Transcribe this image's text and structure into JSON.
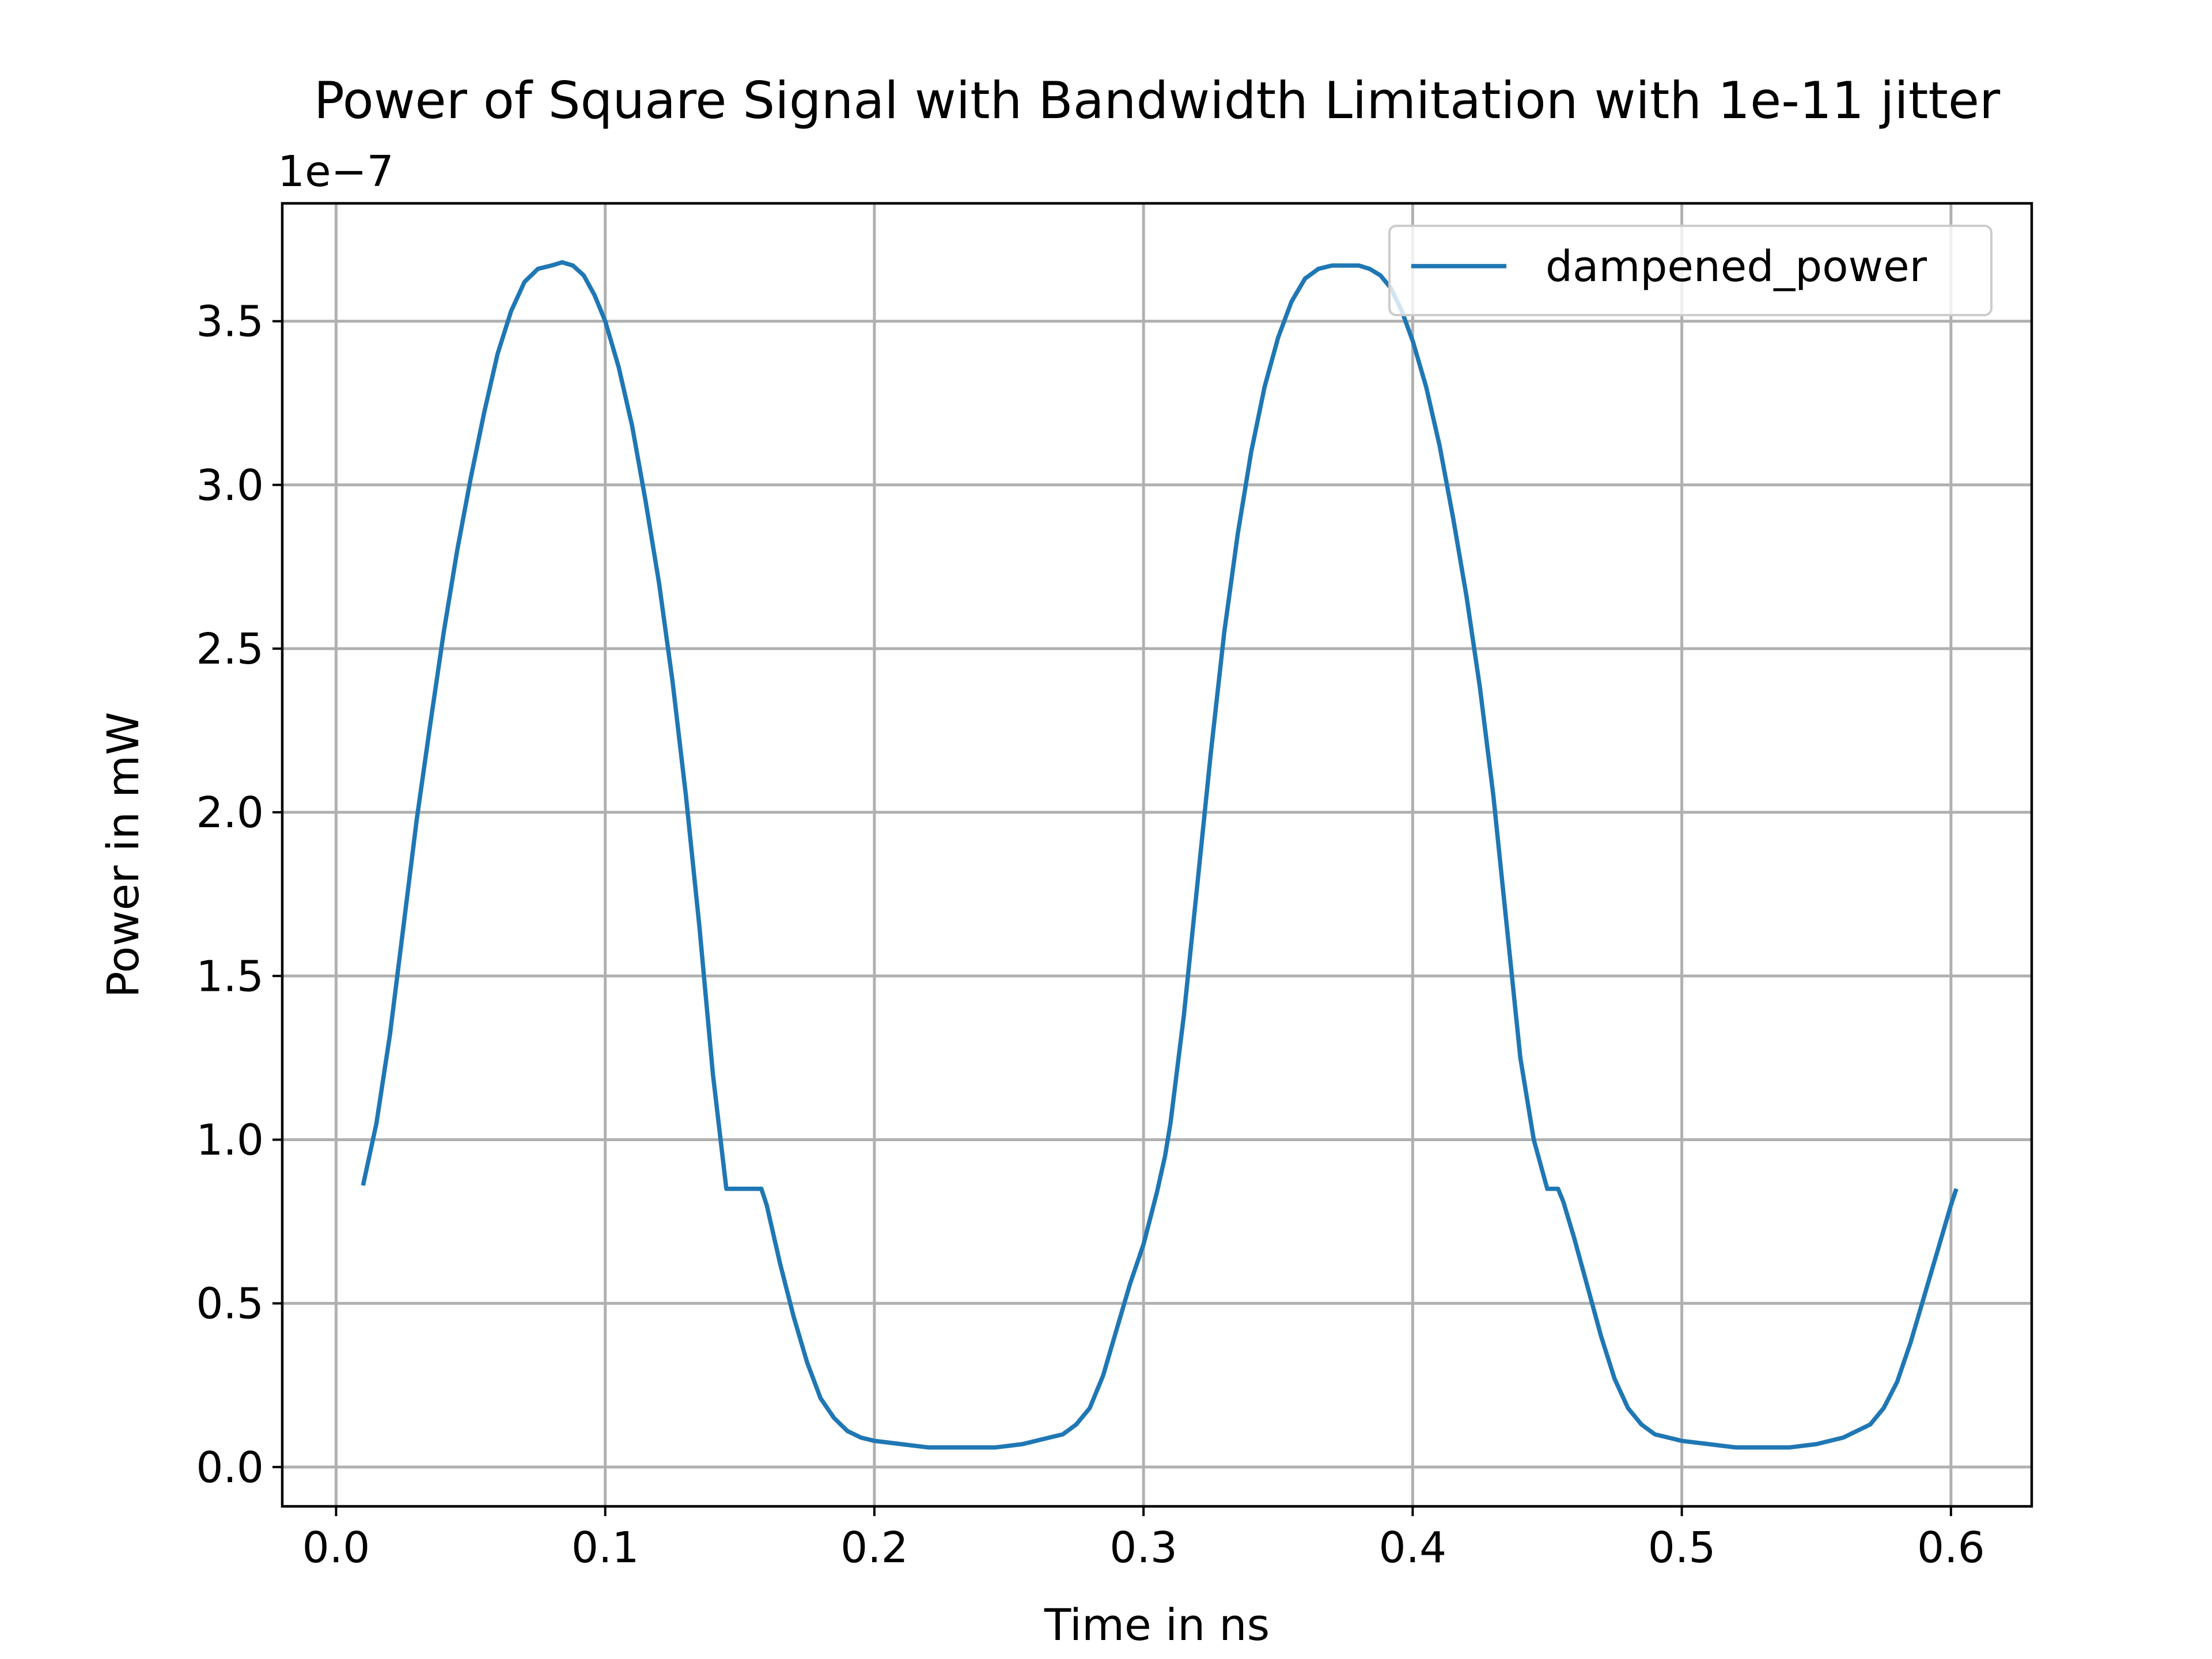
{
  "chart_data": {
    "type": "line",
    "title": "Power of Square Signal with Bandwidth Limitation with 1e-11 jitter",
    "xlabel": "Time in ns",
    "ylabel": "Power in mW",
    "y_offset_label": "1e−7",
    "y_scale": 1e-07,
    "xlim": [
      -0.02,
      0.63
    ],
    "ylim": [
      -0.12,
      3.86
    ],
    "xticks": [
      0.0,
      0.1,
      0.2,
      0.3,
      0.4,
      0.5,
      0.6
    ],
    "xtick_labels": [
      "0.0",
      "0.1",
      "0.2",
      "0.3",
      "0.4",
      "0.5",
      "0.6"
    ],
    "yticks": [
      0.0,
      0.5,
      1.0,
      1.5,
      2.0,
      2.5,
      3.0,
      3.5
    ],
    "ytick_labels": [
      "0.0",
      "0.5",
      "1.0",
      "1.5",
      "2.0",
      "2.5",
      "3.0",
      "3.5"
    ],
    "grid": true,
    "legend_position": "top-right",
    "series": [
      {
        "name": "dampened_power",
        "color": "#1f77b4",
        "x": [
          0.01,
          0.015,
          0.02,
          0.025,
          0.03,
          0.035,
          0.04,
          0.045,
          0.05,
          0.055,
          0.06,
          0.065,
          0.07,
          0.075,
          0.08,
          0.084,
          0.088,
          0.092,
          0.096,
          0.1,
          0.105,
          0.11,
          0.115,
          0.12,
          0.125,
          0.13,
          0.135,
          0.14,
          0.145,
          0.15,
          0.155,
          0.158,
          0.16,
          0.165,
          0.17,
          0.175,
          0.18,
          0.185,
          0.19,
          0.195,
          0.2,
          0.21,
          0.22,
          0.232,
          0.245,
          0.255,
          0.265,
          0.27,
          0.275,
          0.28,
          0.285,
          0.29,
          0.295,
          0.3,
          0.305,
          0.308,
          0.31,
          0.315,
          0.32,
          0.325,
          0.33,
          0.335,
          0.34,
          0.345,
          0.35,
          0.355,
          0.36,
          0.365,
          0.37,
          0.375,
          0.38,
          0.384,
          0.388,
          0.392,
          0.396,
          0.4,
          0.405,
          0.41,
          0.415,
          0.42,
          0.425,
          0.43,
          0.435,
          0.44,
          0.445,
          0.45,
          0.454,
          0.456,
          0.46,
          0.465,
          0.47,
          0.475,
          0.48,
          0.485,
          0.49,
          0.495,
          0.5,
          0.51,
          0.52,
          0.528,
          0.54,
          0.55,
          0.56,
          0.565,
          0.57,
          0.575,
          0.58,
          0.585,
          0.59,
          0.595,
          0.6,
          0.602
        ],
        "y": [
          0.86,
          1.05,
          1.32,
          1.65,
          1.98,
          2.27,
          2.55,
          2.8,
          3.02,
          3.22,
          3.4,
          3.53,
          3.62,
          3.66,
          3.67,
          3.68,
          3.67,
          3.64,
          3.58,
          3.5,
          3.36,
          3.18,
          2.95,
          2.7,
          2.4,
          2.05,
          1.65,
          1.2,
          0.85,
          0.85,
          0.85,
          0.85,
          0.8,
          0.62,
          0.46,
          0.32,
          0.21,
          0.15,
          0.11,
          0.09,
          0.08,
          0.07,
          0.06,
          0.06,
          0.06,
          0.07,
          0.09,
          0.1,
          0.13,
          0.18,
          0.28,
          0.42,
          0.56,
          0.68,
          0.84,
          0.95,
          1.05,
          1.38,
          1.78,
          2.18,
          2.55,
          2.85,
          3.1,
          3.3,
          3.45,
          3.56,
          3.63,
          3.66,
          3.67,
          3.67,
          3.67,
          3.66,
          3.64,
          3.6,
          3.53,
          3.44,
          3.3,
          3.12,
          2.9,
          2.66,
          2.38,
          2.05,
          1.65,
          1.25,
          1.0,
          0.85,
          0.85,
          0.81,
          0.7,
          0.55,
          0.4,
          0.27,
          0.18,
          0.13,
          0.1,
          0.09,
          0.08,
          0.07,
          0.06,
          0.06,
          0.06,
          0.07,
          0.09,
          0.11,
          0.13,
          0.18,
          0.26,
          0.38,
          0.52,
          0.66,
          0.8,
          0.85
        ]
      }
    ]
  }
}
